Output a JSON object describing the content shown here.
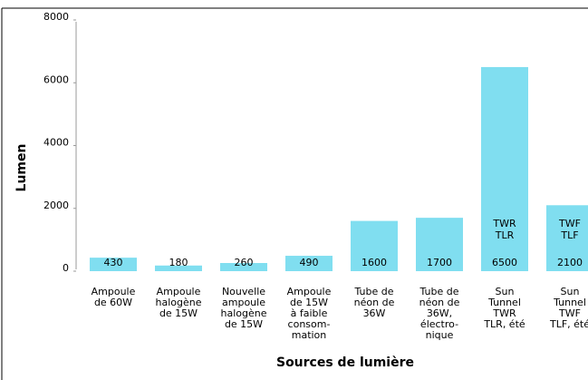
{
  "chart_data": {
    "type": "bar",
    "y_label": "Lumen",
    "x_label": "Sources de lumière",
    "categories": [
      [
        "Ampoule",
        "de 60W"
      ],
      [
        "Ampoule",
        "halogène",
        "de 15W"
      ],
      [
        "Nouvelle",
        "ampoule",
        "halogène",
        "de 15W"
      ],
      [
        "Ampoule",
        "de 15W",
        "à faible",
        "consom-",
        "mation"
      ],
      [
        "Tube de",
        "néon de",
        "36W"
      ],
      [
        "Tube de",
        "néon de",
        "36W,",
        "électro-",
        "nique"
      ],
      [
        "Sun",
        "Tunnel",
        "TWR",
        "TLR, été"
      ],
      [
        "Sun",
        "Tunnel",
        "TWF",
        "TLF, été"
      ]
    ],
    "values": [
      430,
      180,
      260,
      490,
      1600,
      1700,
      6500,
      2100
    ],
    "inner_labels": [
      null,
      null,
      null,
      null,
      null,
      null,
      [
        "TWR",
        "TLR"
      ],
      [
        "TWF",
        "TLF"
      ]
    ],
    "color": "#80def0",
    "ylim": [
      0,
      8000
    ],
    "yticks": [
      0,
      2000,
      4000,
      6000,
      8000
    ]
  }
}
